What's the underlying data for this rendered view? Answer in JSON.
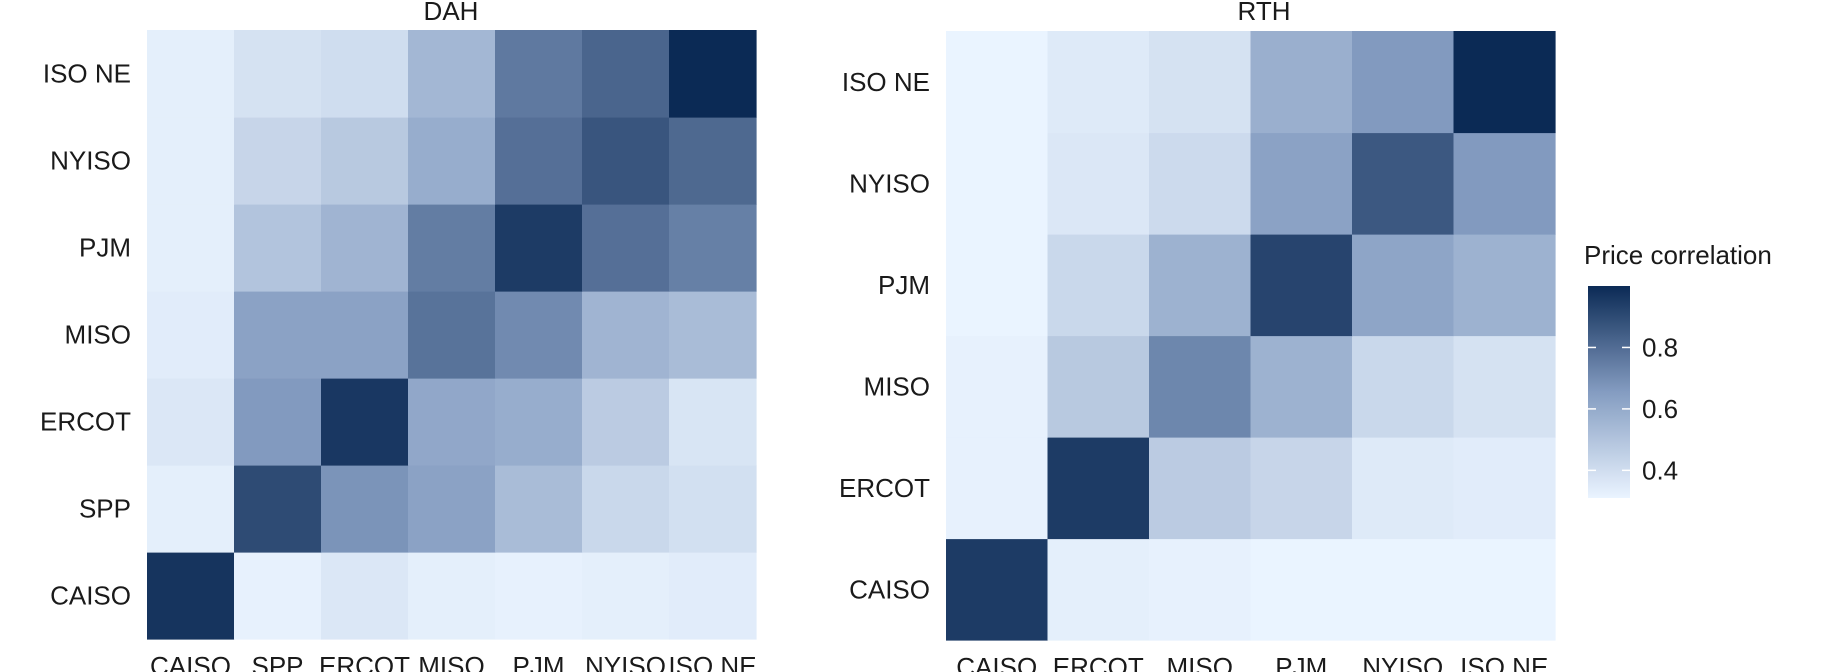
{
  "chart_data": [
    {
      "type": "heatmap",
      "title": "DAH",
      "x_categories": [
        "CAISO",
        "SPP",
        "ERCOT",
        "MISO",
        "PJM",
        "NYISO",
        "ISO NE"
      ],
      "y_categories": [
        "CAISO",
        "SPP",
        "ERCOT",
        "MISO",
        "PJM",
        "NYISO",
        "ISO NE"
      ],
      "values": [
        [
          0.97,
          0.32,
          0.36,
          0.33,
          0.32,
          0.33,
          0.34
        ],
        [
          0.33,
          0.9,
          0.68,
          0.63,
          0.53,
          0.42,
          0.39
        ],
        [
          0.36,
          0.66,
          0.96,
          0.61,
          0.59,
          0.47,
          0.37
        ],
        [
          0.34,
          0.63,
          0.63,
          0.78,
          0.71,
          0.56,
          0.53
        ],
        [
          0.33,
          0.5,
          0.56,
          0.75,
          0.95,
          0.79,
          0.74
        ],
        [
          0.33,
          0.43,
          0.48,
          0.59,
          0.79,
          0.87,
          0.81
        ],
        [
          0.33,
          0.38,
          0.4,
          0.55,
          0.76,
          0.82,
          1.0
        ]
      ]
    },
    {
      "type": "heatmap",
      "title": "RTH",
      "x_categories": [
        "CAISO",
        "ERCOT",
        "MISO",
        "PJM",
        "NYISO",
        "ISO NE"
      ],
      "y_categories": [
        "CAISO",
        "ERCOT",
        "MISO",
        "PJM",
        "NYISO",
        "ISO NE"
      ],
      "values": [
        [
          0.95,
          0.33,
          0.32,
          0.31,
          0.31,
          0.31
        ],
        [
          0.32,
          0.95,
          0.47,
          0.43,
          0.35,
          0.34
        ],
        [
          0.32,
          0.48,
          0.72,
          0.57,
          0.42,
          0.38
        ],
        [
          0.31,
          0.42,
          0.57,
          0.92,
          0.62,
          0.57
        ],
        [
          0.31,
          0.36,
          0.41,
          0.63,
          0.86,
          0.66
        ],
        [
          0.31,
          0.35,
          0.38,
          0.58,
          0.66,
          1.0
        ]
      ]
    }
  ],
  "legend": {
    "title": "Price correlation",
    "ticks": [
      "0.8",
      "0.6",
      "0.4"
    ],
    "tick_values": [
      0.8,
      0.6,
      0.4
    ],
    "range": [
      0.31,
      1.0
    ],
    "color_low": "#eaf4ff",
    "color_high": "#0b2a55"
  }
}
